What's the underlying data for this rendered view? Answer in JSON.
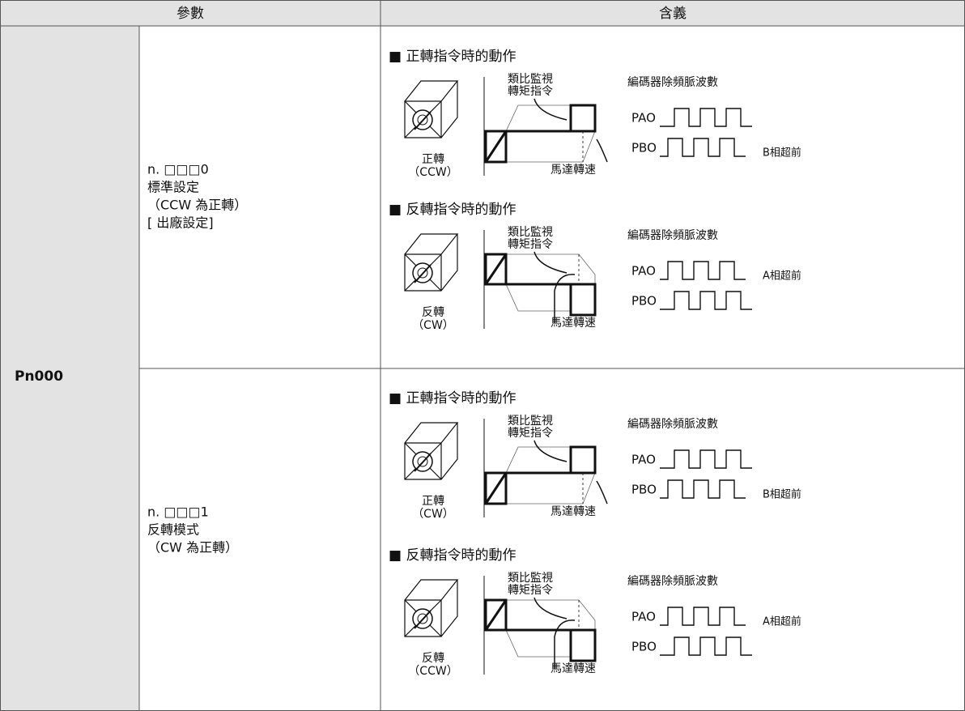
{
  "table": {
    "headers": [
      "參數",
      "含義"
    ],
    "parameter": "Pn000",
    "rows": [
      {
        "setting": [
          "n. □□□0",
          "標準設定",
          "（CCW 為正轉）",
          "[ 出廠設定]"
        ],
        "diagrams": [
          {
            "heading": "■ 正轉指令時的動作",
            "monitor_label": [
              "類比監視",
              "轉矩指令"
            ],
            "direction": [
              "正轉",
              "（CCW）"
            ],
            "speed_label": "馬達轉速",
            "encoder_title": "編碼器除頻脈波數",
            "pao": "PAO",
            "pbo": "PBO",
            "pbo_note": "B相超前"
          },
          {
            "heading": "■ 反轉指令時的動作",
            "monitor_label": [
              "類比監視",
              "轉矩指令"
            ],
            "direction": [
              "反轉",
              "（CW）"
            ],
            "speed_label": "馬達轉速",
            "encoder_title": "編碼器除頻脈波數",
            "pao": "PAO",
            "pbo": "PBO",
            "pao_note": "A相超前"
          }
        ]
      },
      {
        "setting": [
          "n. □□□1",
          "反轉模式",
          "（CW 為正轉）"
        ],
        "diagrams": [
          {
            "heading": "■ 正轉指令時的動作",
            "monitor_label": [
              "類比監視",
              "轉矩指令"
            ],
            "direction": [
              "正轉",
              "（CW）"
            ],
            "speed_label": "馬達轉速",
            "encoder_title": "編碼器除頻脈波數",
            "pao": "PAO",
            "pbo": "PBO",
            "pbo_note": "B相超前"
          },
          {
            "heading": "■ 反轉指令時的動作",
            "monitor_label": [
              "類比監視",
              "轉矩指令"
            ],
            "direction": [
              "反轉",
              "（CCW）"
            ],
            "speed_label": "馬達轉速",
            "encoder_title": "編碼器除頻脈波數",
            "pao": "PAO",
            "pbo": "PBO",
            "pao_note": "A相超前"
          }
        ]
      }
    ]
  }
}
